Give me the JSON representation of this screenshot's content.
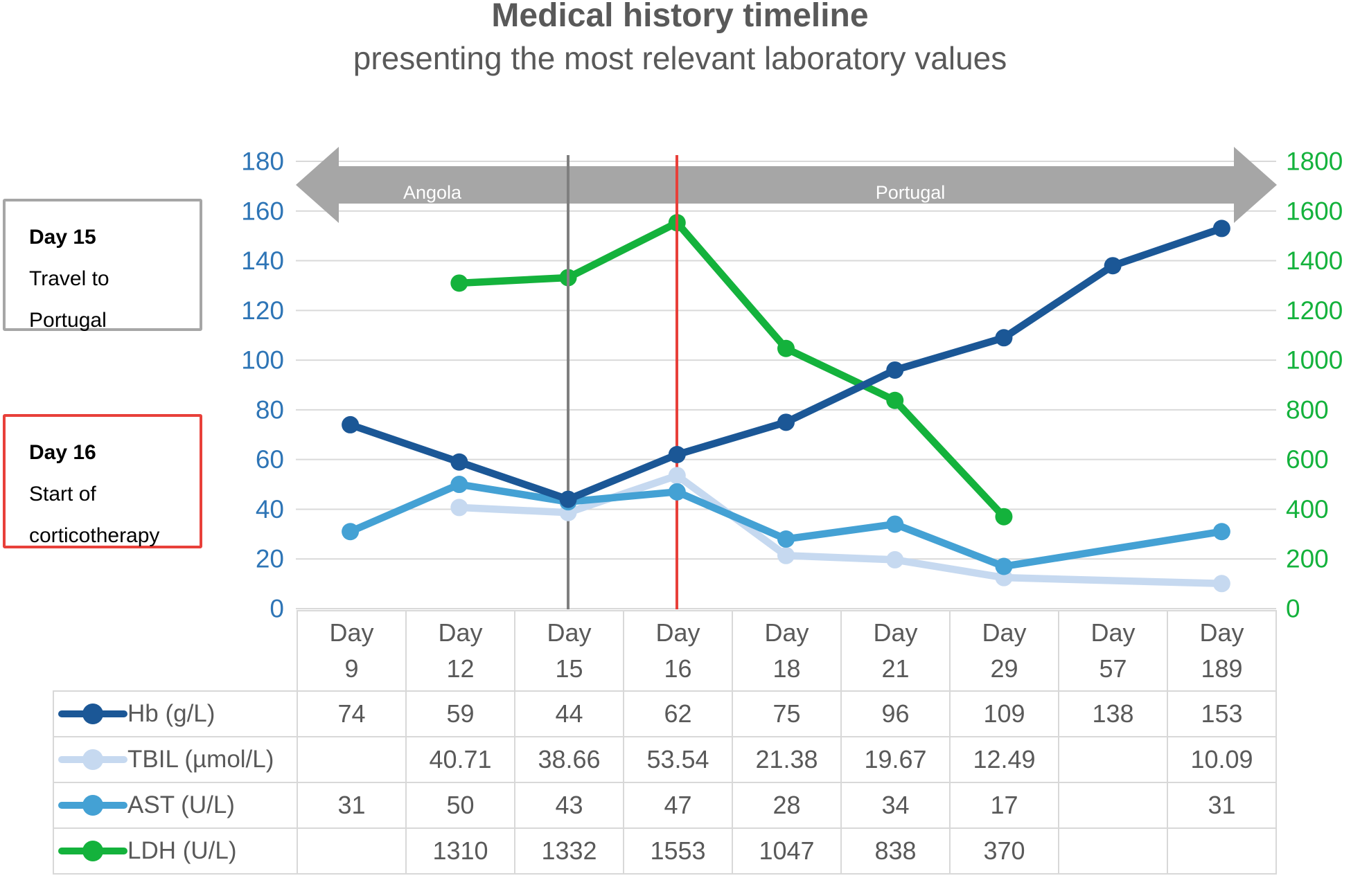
{
  "title": "Medical history timeline",
  "subtitle": "presenting the most relevant laboratory values",
  "annotations": [
    {
      "heading": "Day 15",
      "line1": "Travel to",
      "line2": "Portugal",
      "border_color": "#A6A6A6"
    },
    {
      "heading": "Day 16",
      "line1": "Start of",
      "line2": "corticotherapy",
      "border_color": "#E8403A"
    }
  ],
  "timeline_banner": {
    "left_region": "Angola",
    "right_region": "Portugal",
    "arrow_color": "#A6A6A6",
    "label_color": "#FFFFFF"
  },
  "event_lines": {
    "day15_color": "#7F7F7F",
    "day16_color": "#E8403A"
  },
  "chart_data": {
    "type": "line",
    "x_prefix": "Day",
    "categories": [
      9,
      12,
      15,
      16,
      18,
      21,
      29,
      57,
      189
    ],
    "series": [
      {
        "id": "hb",
        "name": "Hb (g/L)",
        "axis": "left",
        "color": "#1B5796",
        "values": [
          74,
          59,
          44,
          62,
          75,
          96,
          109,
          138,
          153
        ]
      },
      {
        "id": "tbil",
        "name": "TBIL (µmol/L)",
        "axis": "left",
        "color": "#C6D9F0",
        "values": [
          null,
          40.71,
          38.66,
          53.54,
          21.38,
          19.67,
          12.49,
          null,
          10.09
        ]
      },
      {
        "id": "ast",
        "name": "AST (U/L)",
        "axis": "left",
        "color": "#44A1D4",
        "values": [
          31,
          50,
          43,
          47,
          28,
          34,
          17,
          null,
          31
        ]
      },
      {
        "id": "ldh",
        "name": "LDH (U/L)",
        "axis": "right",
        "color": "#14B23C",
        "values": [
          null,
          1310,
          1332,
          1553,
          1047,
          838,
          370,
          null,
          null
        ]
      }
    ],
    "left_axis": {
      "min": 0,
      "max": 180,
      "step": 20,
      "color": "#2E75B6"
    },
    "right_axis": {
      "min": 0,
      "max": 1800,
      "step": 200,
      "color": "#14B23C"
    },
    "gridlines": true,
    "gridline_color": "#D9D9D9",
    "legend_position": "table-left",
    "draw_order": [
      "ldh",
      "tbil",
      "ast",
      "hb"
    ],
    "vlines": [
      {
        "at_category": 15,
        "color": "#7F7F7F"
      },
      {
        "at_category": 16,
        "color": "#E8403A"
      }
    ]
  }
}
